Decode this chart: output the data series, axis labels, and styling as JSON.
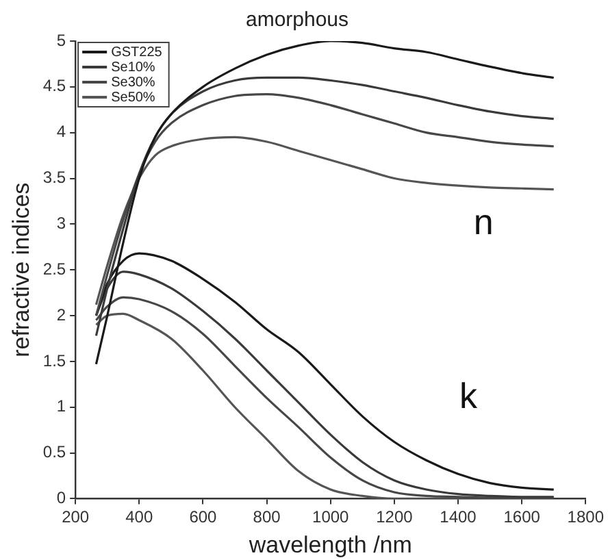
{
  "chart_data": {
    "type": "line",
    "title": "amorphous",
    "xlabel": "wavelength /nm",
    "ylabel": "refractive indices",
    "xlim": [
      200,
      1800
    ],
    "xticks": [
      200,
      400,
      600,
      800,
      1000,
      1200,
      1400,
      1600,
      1800
    ],
    "ylim": [
      0,
      5
    ],
    "yticks": [
      0,
      0.5,
      1,
      1.5,
      2,
      2.5,
      3,
      3.5,
      4,
      4.5,
      5
    ],
    "grid": false,
    "legend": "top left",
    "marker": "none",
    "line_style": "solid",
    "annotations": [
      "n",
      "k"
    ],
    "series": [
      {
        "name": "GST225",
        "color": "#1a1a1a",
        "x": [
          265,
          300,
          350,
          400,
          450,
          500,
          600,
          700,
          800,
          900,
          1000,
          1100,
          1200,
          1300,
          1400,
          1500,
          1600,
          1700
        ],
        "values": [
          1.47,
          2.0,
          2.8,
          3.5,
          3.95,
          4.2,
          4.5,
          4.7,
          4.85,
          4.95,
          5.0,
          4.98,
          4.92,
          4.88,
          4.8,
          4.72,
          4.65,
          4.6
        ]
      },
      {
        "name": "Se10%",
        "color": "#3a3a3a",
        "x": [
          265,
          300,
          350,
          400,
          450,
          500,
          600,
          700,
          800,
          900,
          1000,
          1100,
          1200,
          1300,
          1400,
          1500,
          1600,
          1700
        ],
        "values": [
          1.78,
          2.3,
          2.95,
          3.55,
          3.95,
          4.2,
          4.45,
          4.57,
          4.6,
          4.6,
          4.57,
          4.52,
          4.45,
          4.38,
          4.3,
          4.23,
          4.18,
          4.15
        ]
      },
      {
        "name": "Se30%",
        "color": "#474747",
        "x": [
          265,
          300,
          350,
          400,
          450,
          500,
          600,
          700,
          800,
          900,
          1000,
          1100,
          1200,
          1300,
          1400,
          1500,
          1600,
          1700
        ],
        "values": [
          2.0,
          2.45,
          3.05,
          3.55,
          3.9,
          4.1,
          4.3,
          4.4,
          4.42,
          4.38,
          4.3,
          4.2,
          4.1,
          4.0,
          3.95,
          3.9,
          3.87,
          3.85
        ]
      },
      {
        "name": "Se50%",
        "color": "#555555",
        "x": [
          265,
          300,
          350,
          400,
          450,
          500,
          600,
          700,
          800,
          900,
          1000,
          1100,
          1200,
          1300,
          1400,
          1500,
          1600,
          1700
        ],
        "values": [
          2.12,
          2.55,
          3.1,
          3.5,
          3.75,
          3.85,
          3.93,
          3.95,
          3.9,
          3.8,
          3.7,
          3.6,
          3.5,
          3.45,
          3.42,
          3.4,
          3.39,
          3.38
        ]
      },
      {
        "color": "#1a1a1a",
        "x": [
          265,
          300,
          350,
          400,
          500,
          600,
          700,
          800,
          900,
          1000,
          1100,
          1200,
          1300,
          1400,
          1500,
          1600,
          1700
        ],
        "values": [
          2.0,
          2.35,
          2.6,
          2.68,
          2.6,
          2.4,
          2.15,
          1.85,
          1.6,
          1.25,
          0.9,
          0.62,
          0.42,
          0.27,
          0.17,
          0.12,
          0.1
        ]
      },
      {
        "color": "#3a3a3a",
        "x": [
          265,
          300,
          350,
          400,
          500,
          600,
          700,
          800,
          900,
          1000,
          1100,
          1200,
          1300,
          1400,
          1500,
          1600,
          1700
        ],
        "values": [
          2.0,
          2.3,
          2.48,
          2.45,
          2.3,
          2.05,
          1.75,
          1.4,
          1.05,
          0.7,
          0.4,
          0.2,
          0.1,
          0.05,
          0.03,
          0.02,
          0.02
        ]
      },
      {
        "color": "#474747",
        "x": [
          265,
          300,
          350,
          400,
          500,
          600,
          700,
          800,
          900,
          1000,
          1100,
          1200,
          1300,
          1400,
          1500,
          1600,
          1700
        ],
        "values": [
          1.95,
          2.1,
          2.2,
          2.18,
          2.05,
          1.8,
          1.45,
          1.1,
          0.78,
          0.45,
          0.2,
          0.07,
          0.03,
          0.02,
          0.01,
          0.01,
          0.01
        ]
      },
      {
        "color": "#555555",
        "x": [
          265,
          300,
          350,
          400,
          500,
          600,
          700,
          800,
          900,
          1000,
          1100,
          1200,
          1300,
          1400,
          1500,
          1600,
          1700
        ],
        "values": [
          1.9,
          2.0,
          2.02,
          1.95,
          1.75,
          1.4,
          1.0,
          0.65,
          0.3,
          0.1,
          0.03,
          0,
          0,
          0,
          0,
          0,
          0
        ]
      }
    ]
  }
}
